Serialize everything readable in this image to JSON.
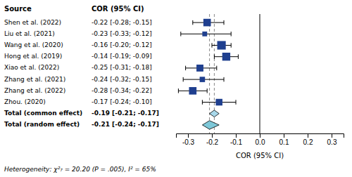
{
  "chart_data": {
    "type": "forest",
    "xlabel": "COR (95% CI)",
    "columns": [
      "Source",
      "COR (95% CI)"
    ],
    "color": "#1F3F8F",
    "reference_line": 0,
    "studies": [
      {
        "label": "Shen et al. (2022)",
        "value": -0.22,
        "ci_low": -0.28,
        "ci_high": -0.15,
        "weight": 2.8,
        "text": "-0.22 [-0.28; -0.15]"
      },
      {
        "label": "Liu et al. (2021)",
        "value": -0.23,
        "ci_low": -0.33,
        "ci_high": -0.12,
        "weight": 1.8,
        "text": "-0.23 [-0.33; -0.12]"
      },
      {
        "label": "Wang et al. (2020)",
        "value": -0.16,
        "ci_low": -0.2,
        "ci_high": -0.12,
        "weight": 3.2,
        "text": "-0.16 [-0.20; -0.12]"
      },
      {
        "label": "Hong et al. (2019)",
        "value": -0.14,
        "ci_low": -0.19,
        "ci_high": -0.09,
        "weight": 3.0,
        "text": "-0.14 [-0.19; -0.09]"
      },
      {
        "label": "Xiao et al. (2022)",
        "value": -0.25,
        "ci_low": -0.31,
        "ci_high": -0.18,
        "weight": 2.6,
        "text": "-0.25 [-0.31; -0.18]"
      },
      {
        "label": "Zhang et al. (2021)",
        "value": -0.24,
        "ci_low": -0.32,
        "ci_high": -0.15,
        "weight": 2.0,
        "text": "-0.24 [-0.32; -0.15]"
      },
      {
        "label": "Zhang et al. (2022)",
        "value": -0.28,
        "ci_low": -0.34,
        "ci_high": -0.22,
        "weight": 2.8,
        "text": "-0.28 [-0.34; -0.22]"
      },
      {
        "label": "Zhou. (2020)",
        "value": -0.17,
        "ci_low": -0.24,
        "ci_high": -0.1,
        "weight": 2.5,
        "text": "-0.17 [-0.24; -0.10]"
      }
    ],
    "totals": [
      {
        "label": "Total (common effect)",
        "value": -0.19,
        "ci_low": -0.21,
        "ci_high": -0.17,
        "text": "-0.19 [-0.21; -0.17]",
        "color": "#A8D8EA"
      },
      {
        "label": "Total (random effect)",
        "value": -0.21,
        "ci_low": -0.24,
        "ci_high": -0.17,
        "text": "-0.21 [-0.24; -0.17]",
        "color": "#7EC8D8"
      }
    ],
    "xlim": [
      -0.35,
      0.35
    ],
    "xticks": [
      -0.3,
      -0.2,
      -0.1,
      {
        "value": 0.0,
        "label": "0.0"
      },
      0.1,
      0.2,
      0.3
    ],
    "footnote": "Heterogeneity: χ²₇ = 20.20 (P = .005), I² = 65%"
  }
}
